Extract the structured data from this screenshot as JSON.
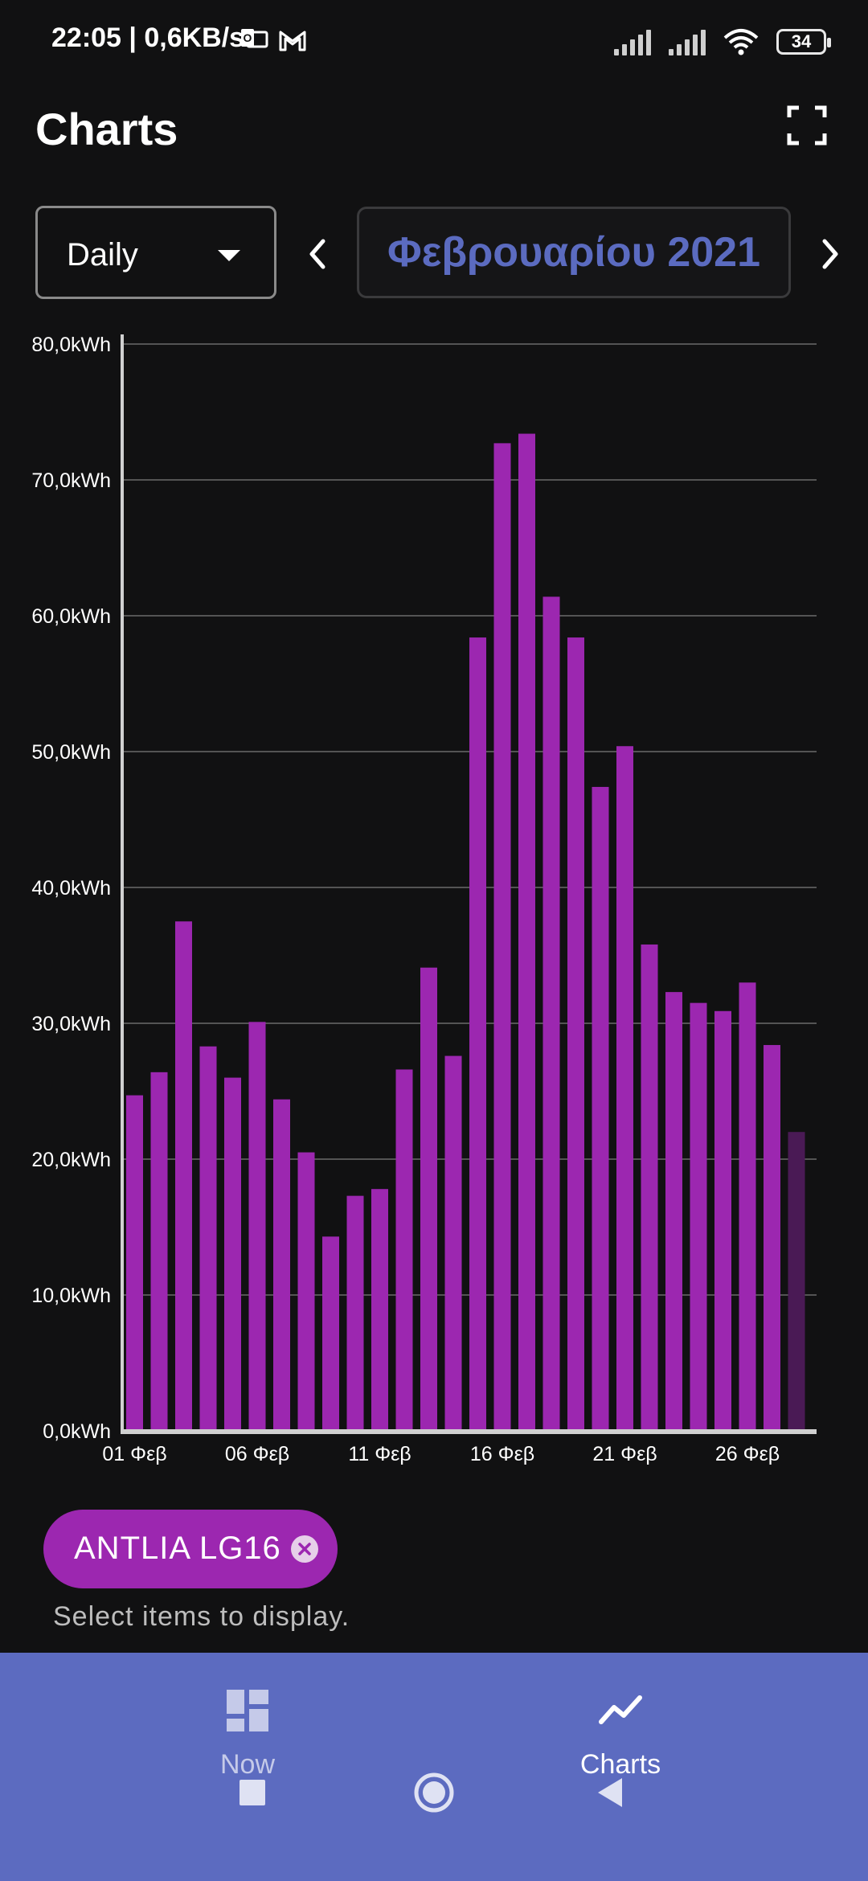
{
  "status_bar": {
    "time": "22:05 | 0,6KB/s",
    "battery": "34",
    "icons": [
      "outlook-icon",
      "gmail-icon",
      "signal-icon",
      "signal-icon",
      "wifi-icon",
      "battery-icon"
    ]
  },
  "header": {
    "title": "Charts",
    "fullscreen_icon": "fullscreen-icon"
  },
  "controls": {
    "period": "Daily",
    "date": "Φεβρουαρίου 2021",
    "prev_icon": "chevron-left-icon",
    "next_icon": "chevron-right-icon"
  },
  "chart_data": {
    "type": "bar",
    "title": "",
    "xlabel": "",
    "ylabel": "",
    "y_ticks": [
      "0,0kWh",
      "10,0kWh",
      "20,0kWh",
      "30,0kWh",
      "40,0kWh",
      "50,0kWh",
      "60,0kWh",
      "70,0kWh",
      "80,0kWh"
    ],
    "x_ticks": [
      {
        "day": 1,
        "label": "01 Φεβ"
      },
      {
        "day": 6,
        "label": "06 Φεβ"
      },
      {
        "day": 11,
        "label": "11 Φεβ"
      },
      {
        "day": 16,
        "label": "16 Φεβ"
      },
      {
        "day": 21,
        "label": "21 Φεβ"
      },
      {
        "day": 26,
        "label": "26 Φεβ"
      }
    ],
    "ylim": [
      0,
      80
    ],
    "grid": true,
    "bar_color": "#9c27b0",
    "dim_bar_color": "#4a1a55",
    "series": [
      {
        "values": [
          24.7,
          26.4,
          37.5,
          28.3,
          26.0,
          30.1,
          24.4,
          20.5,
          14.3,
          17.3,
          17.8,
          26.6,
          34.1,
          27.6,
          58.4,
          72.7,
          73.4,
          61.4,
          58.4,
          47.4,
          50.4,
          35.8,
          32.3,
          31.5,
          30.9,
          33.0,
          28.4,
          22.0
        ],
        "dim_last": true
      }
    ]
  },
  "legend_chip": {
    "label": "ANTLIA LG16",
    "close_icon": "close-circle-icon"
  },
  "helper_text": "Select items to display.",
  "bottom_nav": {
    "items": [
      {
        "label": "Now",
        "icon": "dashboard-icon"
      },
      {
        "label": "Charts",
        "icon": "chart-line-icon"
      }
    ]
  },
  "system_nav": [
    "square-icon",
    "circle-icon",
    "triangle-back-icon"
  ]
}
